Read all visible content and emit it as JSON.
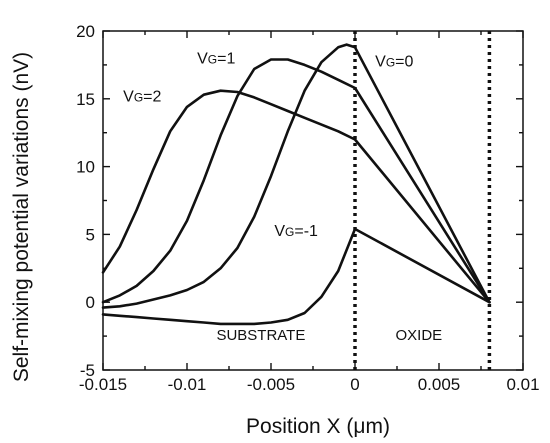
{
  "chart_data": {
    "type": "line",
    "title": "",
    "xlabel": "Position X  (μm)",
    "ylabel": "Self-mixing potential variations (nV)",
    "xlim": [
      -0.015,
      0.01
    ],
    "ylim": [
      -5,
      20
    ],
    "xticks": [
      -0.015,
      -0.01,
      -0.005,
      0,
      0.005,
      0.01
    ],
    "xtick_labels": [
      "-0.015",
      "-0.01",
      "-0.005",
      "0",
      "0.005",
      "0.01"
    ],
    "yticks": [
      -5,
      0,
      5,
      10,
      15,
      20
    ],
    "ytick_labels": [
      "-5",
      "0",
      "5",
      "10",
      "15",
      "20"
    ],
    "grid": false,
    "legend": "none",
    "vertical_lines": [
      0,
      0.008
    ],
    "region_labels": [
      {
        "text": "SUBSTRATE",
        "x": -0.0056,
        "y": -2.8
      },
      {
        "text": "OXIDE",
        "x": 0.0038,
        "y": -2.8
      }
    ],
    "series": [
      {
        "label": {
          "main": "V",
          "sub": "G",
          "rest": "=2"
        },
        "label_pos": {
          "x": -0.0138,
          "y": 14.8
        },
        "x": [
          -0.015,
          -0.014,
          -0.013,
          -0.012,
          -0.011,
          -0.01,
          -0.009,
          -0.008,
          -0.007,
          -0.006,
          -0.005,
          -0.004,
          -0.003,
          -0.002,
          -0.001,
          0,
          0.008
        ],
        "y": [
          2.2,
          4.1,
          6.8,
          9.8,
          12.6,
          14.4,
          15.3,
          15.6,
          15.5,
          15.1,
          14.6,
          14.1,
          13.6,
          13.1,
          12.6,
          12.0,
          0
        ]
      },
      {
        "label": {
          "main": "V",
          "sub": "G",
          "rest": "=1"
        },
        "label_pos": {
          "x": -0.0094,
          "y": 17.6
        },
        "x": [
          -0.015,
          -0.014,
          -0.013,
          -0.012,
          -0.011,
          -0.01,
          -0.009,
          -0.008,
          -0.007,
          -0.006,
          -0.005,
          -0.004,
          -0.003,
          -0.002,
          -0.001,
          0,
          0.008
        ],
        "y": [
          0,
          0.5,
          1.2,
          2.3,
          3.8,
          6.0,
          9.0,
          12.3,
          15.2,
          17.2,
          17.9,
          17.9,
          17.5,
          17.0,
          16.4,
          15.8,
          0
        ]
      },
      {
        "label": {
          "main": "V",
          "sub": "G",
          "rest": "=0"
        },
        "label_pos": {
          "x": 0.0012,
          "y": 17.4
        },
        "x": [
          -0.015,
          -0.014,
          -0.013,
          -0.012,
          -0.011,
          -0.01,
          -0.009,
          -0.008,
          -0.007,
          -0.006,
          -0.005,
          -0.004,
          -0.003,
          -0.002,
          -0.001,
          -0.0005,
          0,
          0.008
        ],
        "y": [
          -0.4,
          -0.3,
          -0.1,
          0.2,
          0.5,
          0.9,
          1.5,
          2.5,
          4.0,
          6.3,
          9.3,
          12.6,
          15.6,
          17.7,
          18.8,
          19.0,
          18.8,
          0
        ]
      },
      {
        "label": {
          "main": "V",
          "sub": "G",
          "rest": "=-1"
        },
        "label_pos": {
          "x": -0.0048,
          "y": 4.9
        },
        "x": [
          -0.015,
          -0.014,
          -0.013,
          -0.012,
          -0.011,
          -0.01,
          -0.009,
          -0.008,
          -0.007,
          -0.006,
          -0.005,
          -0.004,
          -0.003,
          -0.002,
          -0.001,
          0,
          0.008
        ],
        "y": [
          -0.9,
          -1.0,
          -1.1,
          -1.2,
          -1.3,
          -1.4,
          -1.5,
          -1.6,
          -1.6,
          -1.6,
          -1.5,
          -1.3,
          -0.8,
          0.4,
          2.3,
          5.4,
          0
        ]
      }
    ]
  }
}
